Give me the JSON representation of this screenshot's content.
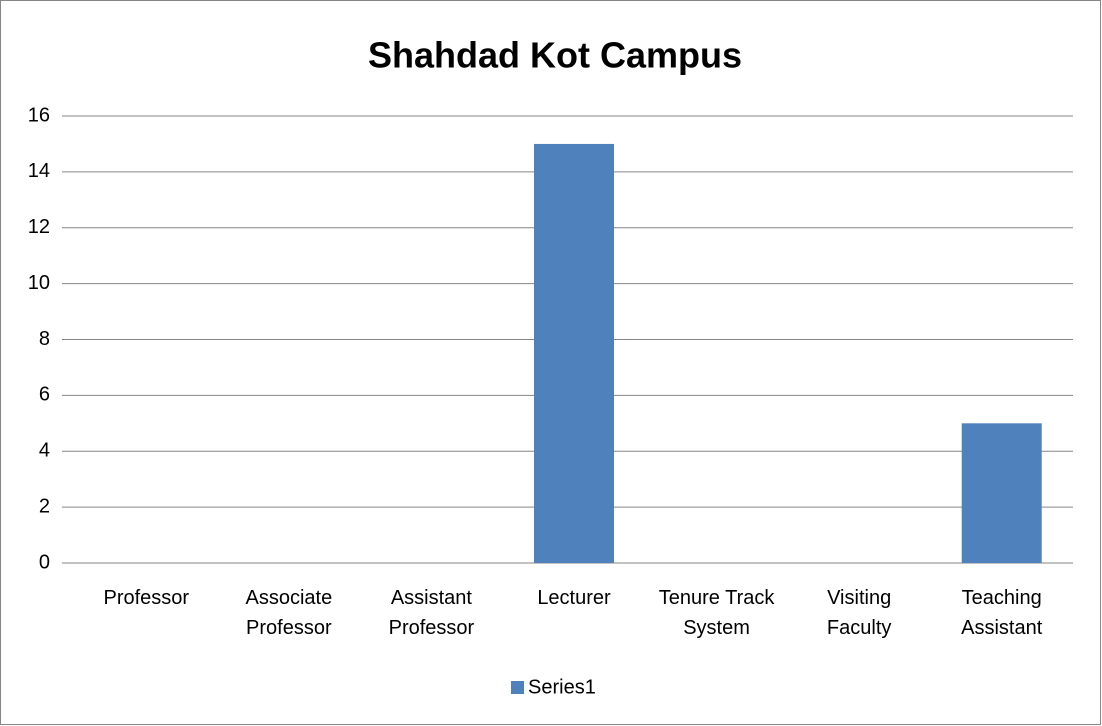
{
  "chart_data": {
    "type": "bar",
    "title": "Shahdad Kot Campus",
    "categories": [
      "Professor",
      "Associate Professor",
      "Assistant Professor",
      "Lecturer",
      "Tenure Track System",
      "Visiting Faculty",
      "Teaching Assistant"
    ],
    "series": [
      {
        "name": "Series1",
        "color": "#4f81bd",
        "values": [
          0,
          0,
          0,
          15,
          0,
          0,
          5
        ]
      }
    ],
    "ylim": [
      0,
      16
    ],
    "yticks": [
      0,
      2,
      4,
      6,
      8,
      10,
      12,
      14,
      16
    ],
    "grid": true,
    "legend": "bottom"
  }
}
